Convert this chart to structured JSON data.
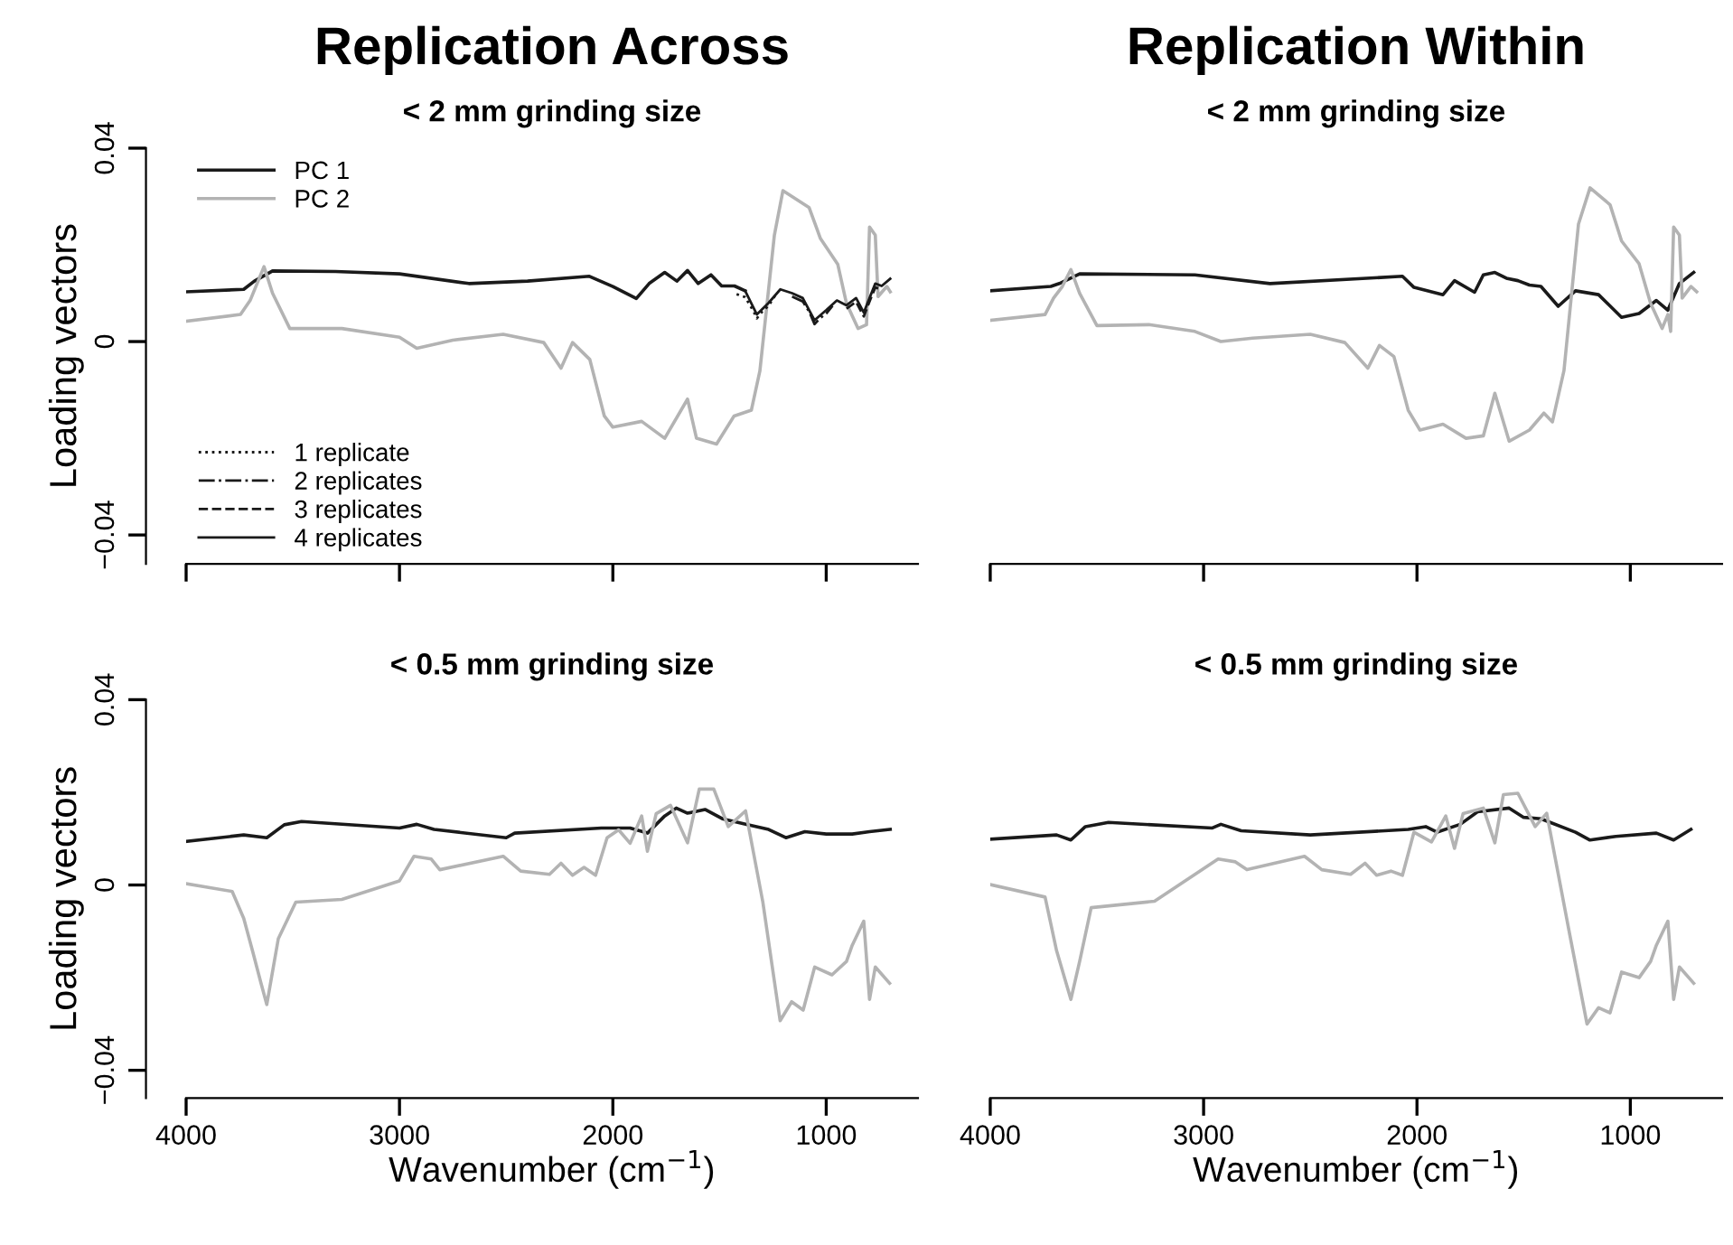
{
  "chart_data": [
    {
      "type": "line",
      "title": "Replication Across",
      "subtitle": "< 2 mm grinding size",
      "ylabel": "Loading vectors",
      "xlim": [
        4000,
        570
      ],
      "ylim": [
        -0.046,
        0.04
      ],
      "xticks": [
        4000,
        3000,
        2000,
        1000
      ],
      "yticks": [
        {
          "value": -0.04,
          "label": "−0.04"
        },
        0,
        0.04
      ],
      "tick_labels": "y",
      "legend": "left",
      "series": [
        {
          "name": "PC 1",
          "color": "#1a1a1a",
          "x": [
            4000,
            3730,
            3680,
            3595,
            3300,
            3000,
            2675,
            2400,
            2110,
            2000,
            1890,
            1830,
            1757,
            1700,
            1650,
            1600,
            1540,
            1490,
            1430,
            1380
          ],
          "values": [
            0.0103,
            0.0108,
            0.0125,
            0.0146,
            0.0145,
            0.014,
            0.012,
            0.0125,
            0.0135,
            0.0114,
            0.0089,
            0.012,
            0.0143,
            0.0125,
            0.0147,
            0.012,
            0.0138,
            0.0115,
            0.0115,
            0.0105
          ]
        },
        {
          "name": "PC 2",
          "color": "#b3b3b3",
          "x": [
            4000,
            3745,
            3700,
            3635,
            3595,
            3514,
            3270,
            3000,
            2919,
            2750,
            2514,
            2324,
            2243,
            2189,
            2108,
            2040,
            2000,
            1865,
            1757,
            1650,
            1608,
            1514,
            1432,
            1351,
            1311,
            1243,
            1203,
            1080,
            1027,
            946,
            905,
            851,
            811,
            797,
            770,
            757,
            716,
            700
          ],
          "values": [
            0.0042,
            0.0056,
            0.0085,
            0.0155,
            0.01,
            0.0027,
            0.0027,
            0.0009,
            -0.0014,
            0.0003,
            0.0015,
            -0.0002,
            -0.0055,
            -0.0002,
            -0.0037,
            -0.0154,
            -0.0177,
            -0.0165,
            -0.02,
            -0.0119,
            -0.02,
            -0.0212,
            -0.0154,
            -0.0142,
            -0.0061,
            0.022,
            0.0312,
            0.0277,
            0.0213,
            0.016,
            0.0079,
            0.0027,
            0.0035,
            0.0237,
            0.022,
            0.0093,
            0.0114,
            0.0103
          ]
        },
        {
          "name": "1 replicate",
          "color": "#1a1a1a",
          "line_style": "dotted",
          "x": [
            1420,
            1380,
            1340,
            1325,
            1300,
            1270,
            1240
          ],
          "values": [
            0.0098,
            0.0092,
            0.0062,
            0.0048,
            0.0062,
            0.0074,
            0.0095
          ]
        },
        {
          "name": "2 replicates",
          "color": "#1a1a1a",
          "line_style": "dashdot",
          "x": [
            1160,
            1110,
            1080,
            1055,
            1030,
            1000,
            970
          ],
          "values": [
            0.0093,
            0.0083,
            0.0062,
            0.0036,
            0.0048,
            0.0058,
            0.0074
          ]
        },
        {
          "name": "3 replicates",
          "color": "#1a1a1a",
          "line_style": "dashed",
          "x": [
            905,
            860,
            824,
            797,
            770,
            740
          ],
          "values": [
            0.0068,
            0.0082,
            0.0052,
            0.0083,
            0.0112,
            0.0108
          ]
        },
        {
          "name": "4 replicates",
          "color": "#1a1a1a",
          "line_style": "solid",
          "x": [
            1380,
            1325,
            1270,
            1215,
            1160,
            1110,
            1055,
            1000,
            950,
            905,
            860,
            824,
            797,
            770,
            740,
            700
          ],
          "values": [
            0.0105,
            0.0056,
            0.008,
            0.0108,
            0.01,
            0.009,
            0.0044,
            0.0065,
            0.0085,
            0.0075,
            0.009,
            0.006,
            0.009,
            0.012,
            0.0115,
            0.013
          ]
        }
      ]
    },
    {
      "type": "line",
      "title": "Replication Within",
      "subtitle": "< 2 mm grinding size",
      "xlim": [
        4000,
        570
      ],
      "ylim": [
        -0.046,
        0.04
      ],
      "xticks": [
        4000,
        3000,
        2000,
        1000
      ],
      "tick_labels": false,
      "series": [
        {
          "color": "#1a1a1a",
          "x": [
            4000,
            3716,
            3676,
            3581,
            3041,
            2689,
            2068,
            2014,
            1878,
            1824,
            1730,
            1689,
            1635,
            1581,
            1527,
            1473,
            1419,
            1338,
            1257,
            1149,
            1041,
            959,
            878,
            824,
            770,
            703
          ],
          "values": [
            0.0105,
            0.0114,
            0.012,
            0.014,
            0.0138,
            0.012,
            0.0135,
            0.0112,
            0.0097,
            0.0126,
            0.0102,
            0.0138,
            0.0143,
            0.0131,
            0.0126,
            0.0117,
            0.0114,
            0.0073,
            0.0105,
            0.0097,
            0.005,
            0.0058,
            0.0085,
            0.0065,
            0.012,
            0.0143
          ]
        },
        {
          "color": "#b3b3b3",
          "x": [
            4000,
            3743,
            3703,
            3662,
            3622,
            3581,
            3500,
            3257,
            3041,
            2919,
            2770,
            2500,
            2338,
            2230,
            2176,
            2108,
            2041,
            1986,
            1878,
            1770,
            1689,
            1635,
            1568,
            1473,
            1405,
            1365,
            1311,
            1243,
            1189,
            1095,
            1041,
            959,
            905,
            851,
            824,
            811,
            797,
            770,
            757,
            716,
            689
          ],
          "values": [
            0.0044,
            0.0056,
            0.009,
            0.0114,
            0.0149,
            0.01,
            0.0033,
            0.0035,
            0.0021,
            0,
            0.0007,
            0.0015,
            -0.0002,
            -0.0055,
            -0.0008,
            -0.0031,
            -0.0142,
            -0.0183,
            -0.0171,
            -0.02,
            -0.0195,
            -0.0107,
            -0.0206,
            -0.0183,
            -0.0148,
            -0.0166,
            -0.006,
            0.0243,
            0.0318,
            0.0283,
            0.0208,
            0.0161,
            0.0079,
            0.0027,
            0.0056,
            0.0021,
            0.0237,
            0.022,
            0.009,
            0.0114,
            0.0103
          ]
        }
      ]
    },
    {
      "type": "line",
      "subtitle": "< 0.5 mm grinding size",
      "ylabel": "Loading vectors",
      "xlabel": "Wavenumber (cm$^{−1}$)",
      "xlim": [
        4000,
        570
      ],
      "ylim": [
        -0.046,
        0.04
      ],
      "xticks": [
        4000,
        3000,
        2000,
        1000
      ],
      "yticks": [
        {
          "value": -0.04,
          "label": "−0.04"
        },
        0,
        0.04
      ],
      "series": [
        {
          "color": "#1a1a1a",
          "x": [
            4000,
            3730,
            3622,
            3540,
            3459,
            3000,
            2919,
            2838,
            2500,
            2460,
            2054,
            1919,
            1838,
            1757,
            1703,
            1650,
            1568,
            1487,
            1378,
            1270,
            1189,
            1100,
            1000,
            878,
            797,
            700
          ],
          "values": [
            0.0094,
            0.0108,
            0.0102,
            0.013,
            0.0137,
            0.0123,
            0.0131,
            0.012,
            0.0102,
            0.0112,
            0.0123,
            0.0123,
            0.0112,
            0.0149,
            0.0166,
            0.0155,
            0.0163,
            0.0143,
            0.0131,
            0.012,
            0.0102,
            0.0115,
            0.011,
            0.011,
            0.0115,
            0.012
          ]
        },
        {
          "color": "#b3b3b3",
          "x": [
            4000,
            3784,
            3730,
            3689,
            3649,
            3622,
            3568,
            3486,
            3270,
            3000,
            2932,
            2851,
            2811,
            2514,
            2432,
            2297,
            2243,
            2189,
            2135,
            2081,
            2027,
            1973,
            1919,
            1865,
            1838,
            1797,
            1730,
            1650,
            1595,
            1527,
            1459,
            1378,
            1297,
            1216,
            1162,
            1108,
            1054,
            973,
            905,
            878,
            824,
            797,
            770,
            703
          ],
          "values": [
            0.0003,
            -0.0014,
            -0.0072,
            -0.0142,
            -0.0212,
            -0.0258,
            -0.0116,
            -0.0037,
            -0.0031,
            0.0009,
            0.0062,
            0.0056,
            0.0033,
            0.0062,
            0.003,
            0.0023,
            0.0047,
            0.0021,
            0.0038,
            0.0021,
            0.0102,
            0.0119,
            0.009,
            0.0149,
            0.0073,
            0.0154,
            0.0172,
            0.0091,
            0.0207,
            0.0207,
            0.0126,
            0.016,
            -0.0037,
            -0.0293,
            -0.0252,
            -0.027,
            -0.0177,
            -0.0194,
            -0.0165,
            -0.013,
            -0.0078,
            -0.0247,
            -0.0177,
            -0.0212
          ]
        }
      ]
    },
    {
      "type": "line",
      "subtitle": "< 0.5 mm grinding size",
      "xlabel": "Wavenumber (cm$^{−1}$)",
      "xlim": [
        4000,
        570
      ],
      "ylim": [
        -0.046,
        0.04
      ],
      "xticks": [
        4000,
        3000,
        2000,
        1000
      ],
      "tick_labels": "x",
      "series": [
        {
          "color": "#1a1a1a",
          "x": [
            4000,
            3689,
            3622,
            3554,
            3446,
            2959,
            2919,
            2824,
            2500,
            2041,
            1959,
            1905,
            1797,
            1716,
            1568,
            1500,
            1419,
            1257,
            1189,
            1068,
            878,
            797,
            716
          ],
          "values": [
            0.0099,
            0.0108,
            0.0097,
            0.0126,
            0.0135,
            0.0123,
            0.0131,
            0.0117,
            0.0108,
            0.012,
            0.0126,
            0.0114,
            0.0131,
            0.0158,
            0.0166,
            0.0146,
            0.0143,
            0.0114,
            0.0097,
            0.0105,
            0.0112,
            0.0097,
            0.012
          ]
        },
        {
          "color": "#b3b3b3",
          "x": [
            4000,
            3743,
            3689,
            3622,
            3581,
            3527,
            3230,
            2932,
            2851,
            2797,
            2527,
            2446,
            2311,
            2243,
            2189,
            2122,
            2068,
            2014,
            1932,
            1865,
            1824,
            1784,
            1689,
            1635,
            1595,
            1527,
            1446,
            1392,
            1284,
            1203,
            1149,
            1095,
            1041,
            959,
            905,
            878,
            824,
            797,
            770,
            703
          ],
          "values": [
            0.0001,
            -0.0026,
            -0.0142,
            -0.0247,
            -0.0165,
            -0.0049,
            -0.0035,
            0.0056,
            0.005,
            0.0033,
            0.0062,
            0.0033,
            0.0023,
            0.0047,
            0.0021,
            0.003,
            0.0021,
            0.0114,
            0.0093,
            0.0149,
            0.0079,
            0.0154,
            0.0166,
            0.0091,
            0.0195,
            0.0198,
            0.0126,
            0.0155,
            -0.0107,
            -0.03,
            -0.0265,
            -0.0276,
            -0.0188,
            -0.02,
            -0.0165,
            -0.013,
            -0.0078,
            -0.0247,
            -0.0177,
            -0.0212
          ]
        }
      ]
    }
  ]
}
